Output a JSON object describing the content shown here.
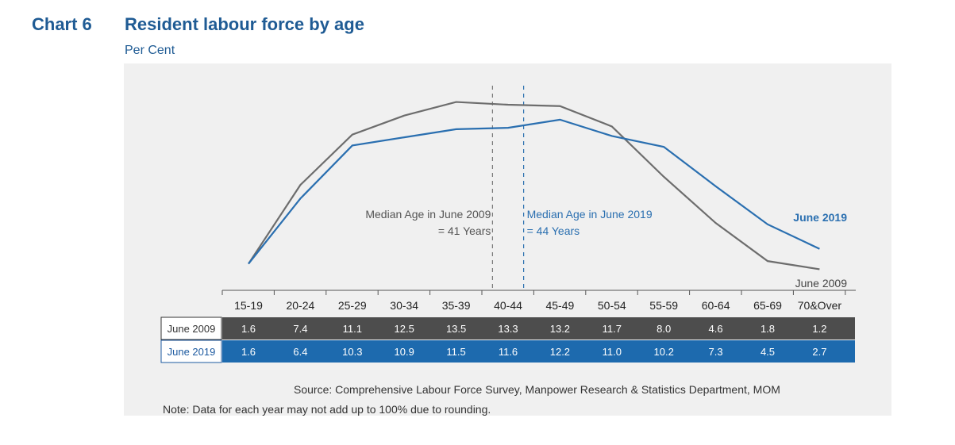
{
  "header": {
    "chart_number": "Chart 6",
    "title": "Resident labour force by age",
    "unit": "Per Cent"
  },
  "colors": {
    "title": "#1f5b94",
    "series_2009": "#6d6d6d",
    "series_2019": "#2a6fb0",
    "row_2009_bg": "#4d4d4d",
    "row_2019_bg": "#1d6aae",
    "panel_bg": "#f0f0f0"
  },
  "chart_data": {
    "type": "line",
    "categories": [
      "15-19",
      "20-24",
      "25-29",
      "30-34",
      "35-39",
      "40-44",
      "45-49",
      "50-54",
      "55-59",
      "60-64",
      "65-69",
      "70&Over"
    ],
    "series": [
      {
        "name": "June 2009",
        "values": [
          1.6,
          7.4,
          11.1,
          12.5,
          13.5,
          13.3,
          13.2,
          11.7,
          8.0,
          4.6,
          1.8,
          1.2
        ]
      },
      {
        "name": "June 2019",
        "values": [
          1.6,
          6.4,
          10.3,
          10.9,
          11.5,
          11.6,
          12.2,
          11.0,
          10.2,
          7.3,
          4.5,
          2.7
        ]
      }
    ],
    "ylim": [
      0,
      14
    ],
    "annotations": {
      "median_2009": [
        "Median Age in June 2009",
        "= 41 Years"
      ],
      "median_2019": [
        "Median Age in June 2019",
        "= 44 Years"
      ]
    },
    "median_ages": {
      "june_2009": 41,
      "june_2019": 44
    }
  },
  "footer": {
    "source": "Source: Comprehensive Labour Force Survey, Manpower Research & Statistics Department, MOM",
    "note": "Note:  Data for each year may not add up to 100% due to rounding."
  }
}
